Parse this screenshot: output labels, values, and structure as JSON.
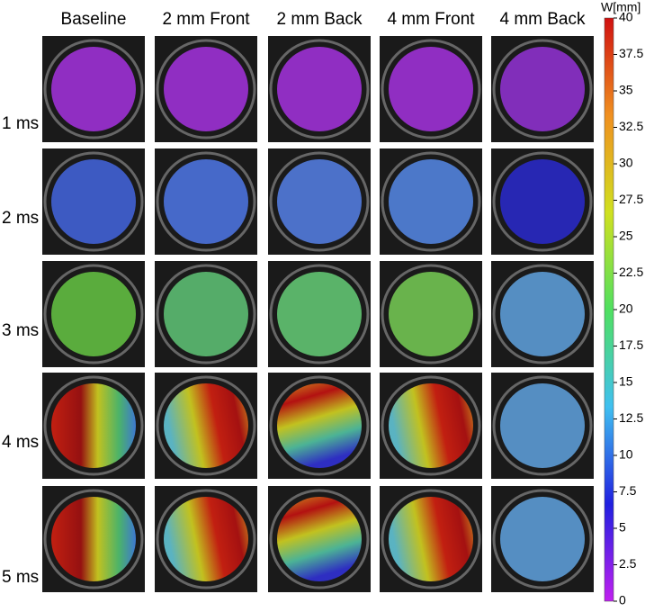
{
  "figure": {
    "columns": [
      "Baseline",
      "2 mm Front",
      "2 mm Back",
      "4 mm Front",
      "4 mm Back"
    ],
    "rows": [
      "1 ms",
      "2 ms",
      "3 ms",
      "4 ms",
      "5 ms"
    ],
    "colorbar": {
      "label": "W[mm]",
      "lim": [
        0,
        40
      ],
      "ticks": [
        0,
        2.5,
        5,
        7.5,
        10,
        12.5,
        15,
        17.5,
        20,
        22.5,
        25,
        27.5,
        30,
        32.5,
        35,
        37.5,
        40
      ],
      "colors": [
        "#c020f0",
        "#2020e0",
        "#40c0f0",
        "#50e060",
        "#d0e020",
        "#f09020",
        "#d01010"
      ]
    }
  }
}
